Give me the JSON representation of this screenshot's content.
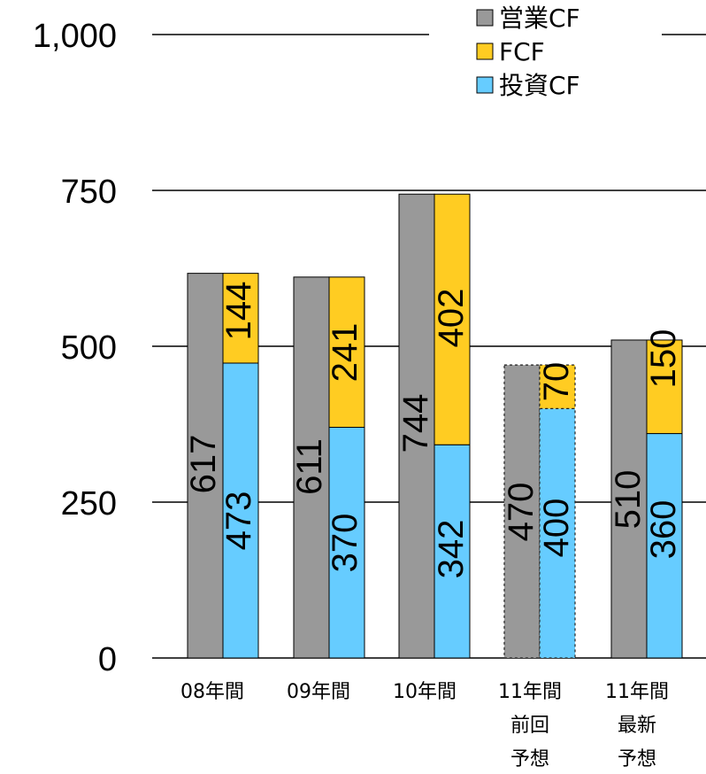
{
  "chart_data": {
    "type": "bar",
    "stacked_pair": true,
    "ylim": [
      0,
      1000
    ],
    "yticks": [
      0,
      250,
      500,
      750,
      1000
    ],
    "ytick_labels": [
      "0",
      "250",
      "500",
      "750",
      "1,000"
    ],
    "grid": true,
    "legend_position": "top-right",
    "categories": [
      [
        "08年間"
      ],
      [
        "09年間"
      ],
      [
        "10年間"
      ],
      [
        "11年間",
        "前回",
        "予想"
      ],
      [
        "11年間",
        "最新",
        "予想"
      ]
    ],
    "series": [
      {
        "name": "営業CF",
        "color": "#999999",
        "values": [
          617,
          611,
          744,
          470,
          510
        ],
        "labels": [
          "617",
          "611",
          "744",
          "470",
          "510"
        ]
      },
      {
        "name": "投資CF",
        "color": "#66CCFF",
        "values": [
          473,
          370,
          342,
          400,
          360
        ],
        "labels": [
          "473",
          "370",
          "342",
          "400",
          "360"
        ]
      },
      {
        "name": "FCF",
        "color": "#FFCC22",
        "values": [
          144,
          241,
          402,
          70,
          150
        ],
        "labels": [
          "144",
          "241",
          "402",
          "70",
          "150"
        ]
      }
    ],
    "forecast_dashed": [
      false,
      false,
      false,
      true,
      false
    ],
    "legend": [
      "営業CF",
      "FCF",
      "投資CF"
    ]
  }
}
